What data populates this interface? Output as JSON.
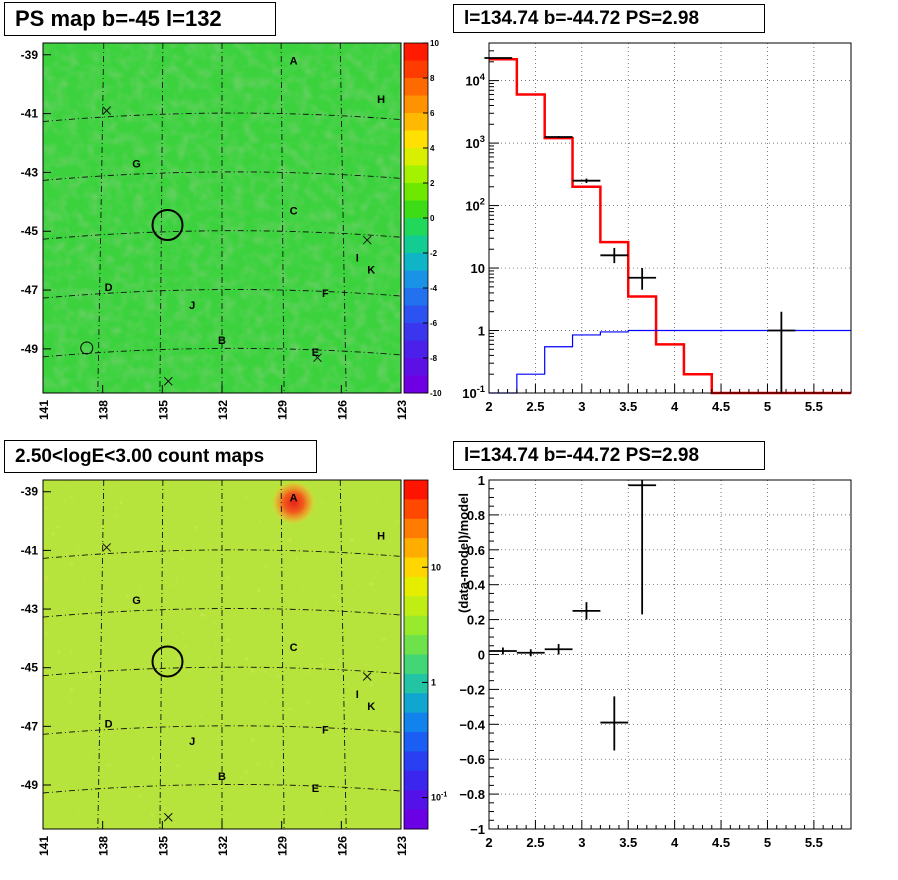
{
  "panels": {
    "ps_map": {
      "title": "PS map b=-45 l=132"
    },
    "spectrum": {
      "title": "l=134.74 b=-44.72 PS=2.98"
    },
    "count_map": {
      "title": "2.50<logE<3.00 count maps"
    },
    "residual": {
      "title": "l=134.74 b=-44.72 PS=2.98"
    }
  },
  "chart_data": [
    {
      "type": "heatmap",
      "title": "PS map b=-45 l=132",
      "x_ticks": [
        "141",
        "138",
        "135",
        "132",
        "129",
        "126",
        "123"
      ],
      "y_ticks": [
        "-39",
        "-41",
        "-43",
        "-45",
        "-47",
        "-49"
      ],
      "xlim": [
        141,
        123
      ],
      "ylim": [
        -50.5,
        -38.6
      ],
      "colorbar": {
        "ticks": [
          "10",
          "8",
          "6",
          "4",
          "2",
          "0",
          "-2",
          "-4",
          "-6",
          "-8",
          "-10"
        ],
        "range": [
          -10,
          10
        ]
      },
      "labels": [
        {
          "text": "A",
          "l": 128.4,
          "b": -39.2
        },
        {
          "text": "H",
          "l": 124.0,
          "b": -40.5
        },
        {
          "text": "G",
          "l": 136.3,
          "b": -42.7
        },
        {
          "text": "C",
          "l": 128.4,
          "b": -44.3
        },
        {
          "text": "I",
          "l": 125.2,
          "b": -45.9
        },
        {
          "text": "K",
          "l": 124.5,
          "b": -46.3
        },
        {
          "text": "D",
          "l": 137.7,
          "b": -46.9
        },
        {
          "text": "F",
          "l": 126.8,
          "b": -47.1
        },
        {
          "text": "J",
          "l": 133.5,
          "b": -47.5
        },
        {
          "text": "B",
          "l": 132.0,
          "b": -48.7
        },
        {
          "text": "E",
          "l": 127.3,
          "b": -49.1
        }
      ],
      "crosses": [
        {
          "l": 137.8,
          "b": -40.9
        },
        {
          "l": 124.7,
          "b": -45.3
        },
        {
          "l": 127.2,
          "b": -49.3
        },
        {
          "l": 134.7,
          "b": -50.1
        }
      ],
      "circles": [
        {
          "l": 134.74,
          "b": -44.72,
          "r_deg": 0.5
        },
        {
          "l": 138.8,
          "b": -48.9,
          "r_deg": 0.2
        }
      ]
    },
    {
      "type": "line",
      "title": "l=134.74 b=-44.72 PS=2.98",
      "xlim": [
        2,
        5.9
      ],
      "ylim": [
        0.1,
        40000
      ],
      "log_y": true,
      "x_ticks": [
        "2",
        "2.5",
        "3",
        "3.5",
        "4",
        "4.5",
        "5",
        "5.5"
      ],
      "y_ticks": [
        "10^-1",
        "1",
        "10",
        "10^2",
        "10^3",
        "10^4"
      ],
      "grid": true,
      "series": [
        {
          "style": "step",
          "color": "#ff0000",
          "edges": [
            2,
            2.3,
            2.6,
            2.9,
            3.2,
            3.5,
            3.8,
            4.1,
            4.4,
            4.7,
            5.0,
            5.3,
            5.6,
            5.9
          ],
          "values": [
            22000,
            6000,
            1200,
            200,
            26,
            3.5,
            0.6,
            0.2,
            0.1,
            0.1,
            0.1,
            0.1,
            0.1
          ]
        },
        {
          "style": "step",
          "color": "#0000ff",
          "edges": [
            2,
            2.3,
            2.6,
            2.9,
            3.2,
            3.5,
            3.8,
            4.1,
            4.4,
            4.7,
            5.0,
            5.3,
            5.6,
            5.9
          ],
          "values": [
            0.1,
            0.2,
            0.55,
            0.85,
            0.95,
            1.0,
            1.0,
            1.0,
            1.0,
            1.0,
            1.0,
            1.0,
            1.0
          ]
        },
        {
          "style": "errorbar",
          "color": "#000000",
          "points": [
            {
              "x": 2.1,
              "y": 23000,
              "xerr": 0.15,
              "ylo": 22500,
              "yhi": 23500
            },
            {
              "x": 2.75,
              "y": 1250,
              "xerr": 0.15,
              "ylo": 1200,
              "yhi": 1300
            },
            {
              "x": 3.05,
              "y": 250,
              "xerr": 0.15,
              "ylo": 230,
              "yhi": 270
            },
            {
              "x": 3.35,
              "y": 16,
              "xerr": 0.15,
              "ylo": 12,
              "yhi": 21
            },
            {
              "x": 3.65,
              "y": 7,
              "xerr": 0.15,
              "ylo": 4.5,
              "yhi": 10
            },
            {
              "x": 5.15,
              "y": 1,
              "xerr": 0.15,
              "ylo": 0.1,
              "yhi": 2.0
            }
          ]
        }
      ]
    },
    {
      "type": "heatmap",
      "title": "2.50<logE<3.00 count maps",
      "x_ticks": [
        "141",
        "138",
        "135",
        "132",
        "129",
        "126",
        "123"
      ],
      "y_ticks": [
        "-39",
        "-41",
        "-43",
        "-45",
        "-47",
        "-49"
      ],
      "xlim": [
        141,
        123
      ],
      "ylim": [
        -50.5,
        -38.6
      ],
      "colorbar": {
        "ticks": [
          "10",
          "1",
          "10^-1"
        ],
        "log": true
      },
      "labels": [
        {
          "text": "A",
          "l": 128.4,
          "b": -39.2
        },
        {
          "text": "H",
          "l": 124.0,
          "b": -40.5
        },
        {
          "text": "G",
          "l": 136.3,
          "b": -42.7
        },
        {
          "text": "C",
          "l": 128.4,
          "b": -44.3
        },
        {
          "text": "I",
          "l": 125.2,
          "b": -45.9
        },
        {
          "text": "K",
          "l": 124.5,
          "b": -46.3
        },
        {
          "text": "D",
          "l": 137.7,
          "b": -46.9
        },
        {
          "text": "F",
          "l": 126.8,
          "b": -47.1
        },
        {
          "text": "J",
          "l": 133.5,
          "b": -47.5
        },
        {
          "text": "B",
          "l": 132.0,
          "b": -48.7
        },
        {
          "text": "E",
          "l": 127.3,
          "b": -49.1
        }
      ],
      "crosses": [
        {
          "l": 137.8,
          "b": -40.9
        },
        {
          "l": 124.7,
          "b": -45.3
        },
        {
          "l": 134.7,
          "b": -50.1
        }
      ],
      "circles": [
        {
          "l": 134.74,
          "b": -44.72,
          "r_deg": 0.5
        }
      ]
    },
    {
      "type": "scatter",
      "title": "l=134.74 b=-44.72 PS=2.98",
      "ylabel": "(data-model)/model",
      "xlim": [
        2,
        5.9
      ],
      "ylim": [
        -1,
        1
      ],
      "x_ticks": [
        "2",
        "2.5",
        "3",
        "3.5",
        "4",
        "4.5",
        "5",
        "5.5"
      ],
      "y_ticks": [
        "-1",
        "-0.8",
        "-0.6",
        "-0.4",
        "-0.2",
        "0",
        "0.2",
        "0.4",
        "0.6",
        "0.8",
        "1"
      ],
      "grid": true,
      "points": [
        {
          "x": 2.15,
          "y": 0.02,
          "xerr": 0.15,
          "ylo": 0.0,
          "yhi": 0.04
        },
        {
          "x": 2.45,
          "y": 0.01,
          "xerr": 0.15,
          "ylo": -0.01,
          "yhi": 0.03
        },
        {
          "x": 2.75,
          "y": 0.03,
          "xerr": 0.15,
          "ylo": 0.0,
          "yhi": 0.06
        },
        {
          "x": 3.05,
          "y": 0.25,
          "xerr": 0.15,
          "ylo": 0.2,
          "yhi": 0.3
        },
        {
          "x": 3.35,
          "y": -0.39,
          "xerr": 0.15,
          "ylo": -0.55,
          "yhi": -0.24
        },
        {
          "x": 3.65,
          "y": 0.97,
          "xerr": 0.15,
          "ylo": 0.23,
          "yhi": 1.0
        }
      ]
    }
  ]
}
